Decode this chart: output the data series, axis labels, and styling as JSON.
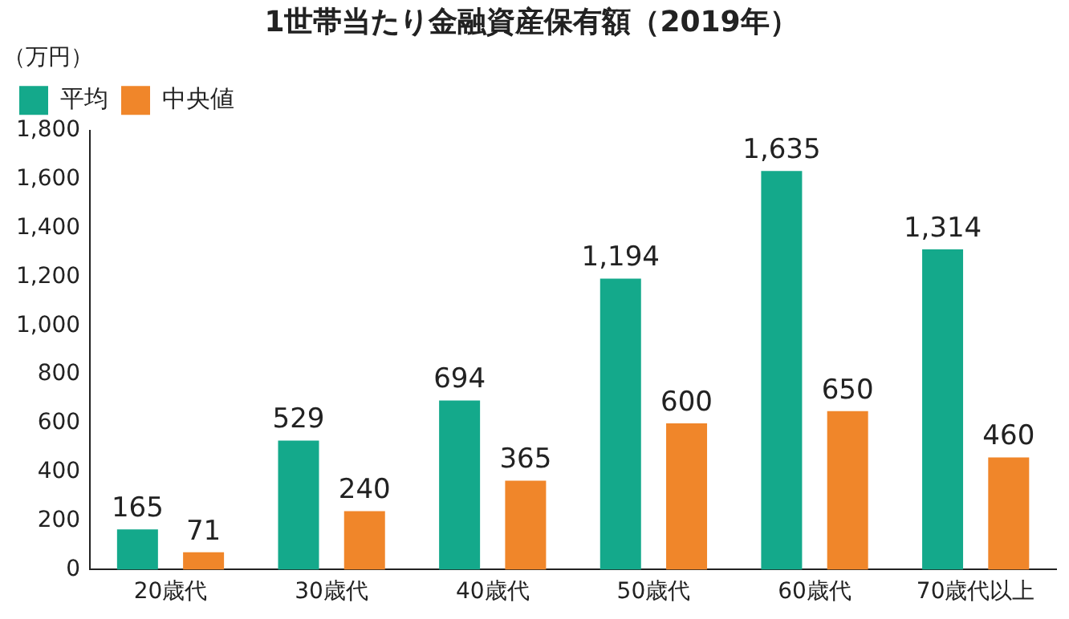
{
  "chart_data": {
    "type": "bar",
    "title": "1世帯当たり金融資産保有額（2019年）",
    "ylabel": "（万円）",
    "categories": [
      "20歳代",
      "30歳代",
      "40歳代",
      "50歳代",
      "60歳代",
      "70歳代以上"
    ],
    "series": [
      {
        "name": "平均",
        "color": "#14a98b",
        "values": [
          165,
          529,
          694,
          1194,
          1635,
          1314
        ],
        "value_labels": [
          "165",
          "529",
          "694",
          "1,194",
          "1,635",
          "1,314"
        ]
      },
      {
        "name": "中央値",
        "color": "#f0862a",
        "values": [
          71,
          240,
          365,
          600,
          650,
          460
        ],
        "value_labels": [
          "71",
          "240",
          "365",
          "600",
          "650",
          "460"
        ]
      }
    ],
    "ylim": [
      0,
      1800
    ],
    "yticks": [
      0,
      200,
      400,
      600,
      800,
      {
        "value": 1000,
        "label": "1,000"
      },
      {
        "value": 1200,
        "label": "1,200"
      },
      {
        "value": 1400,
        "label": "1,400"
      },
      {
        "value": 1600,
        "label": "1,600"
      },
      {
        "value": 1800,
        "label": "1,800"
      }
    ],
    "grid": false,
    "legend": "top left"
  }
}
